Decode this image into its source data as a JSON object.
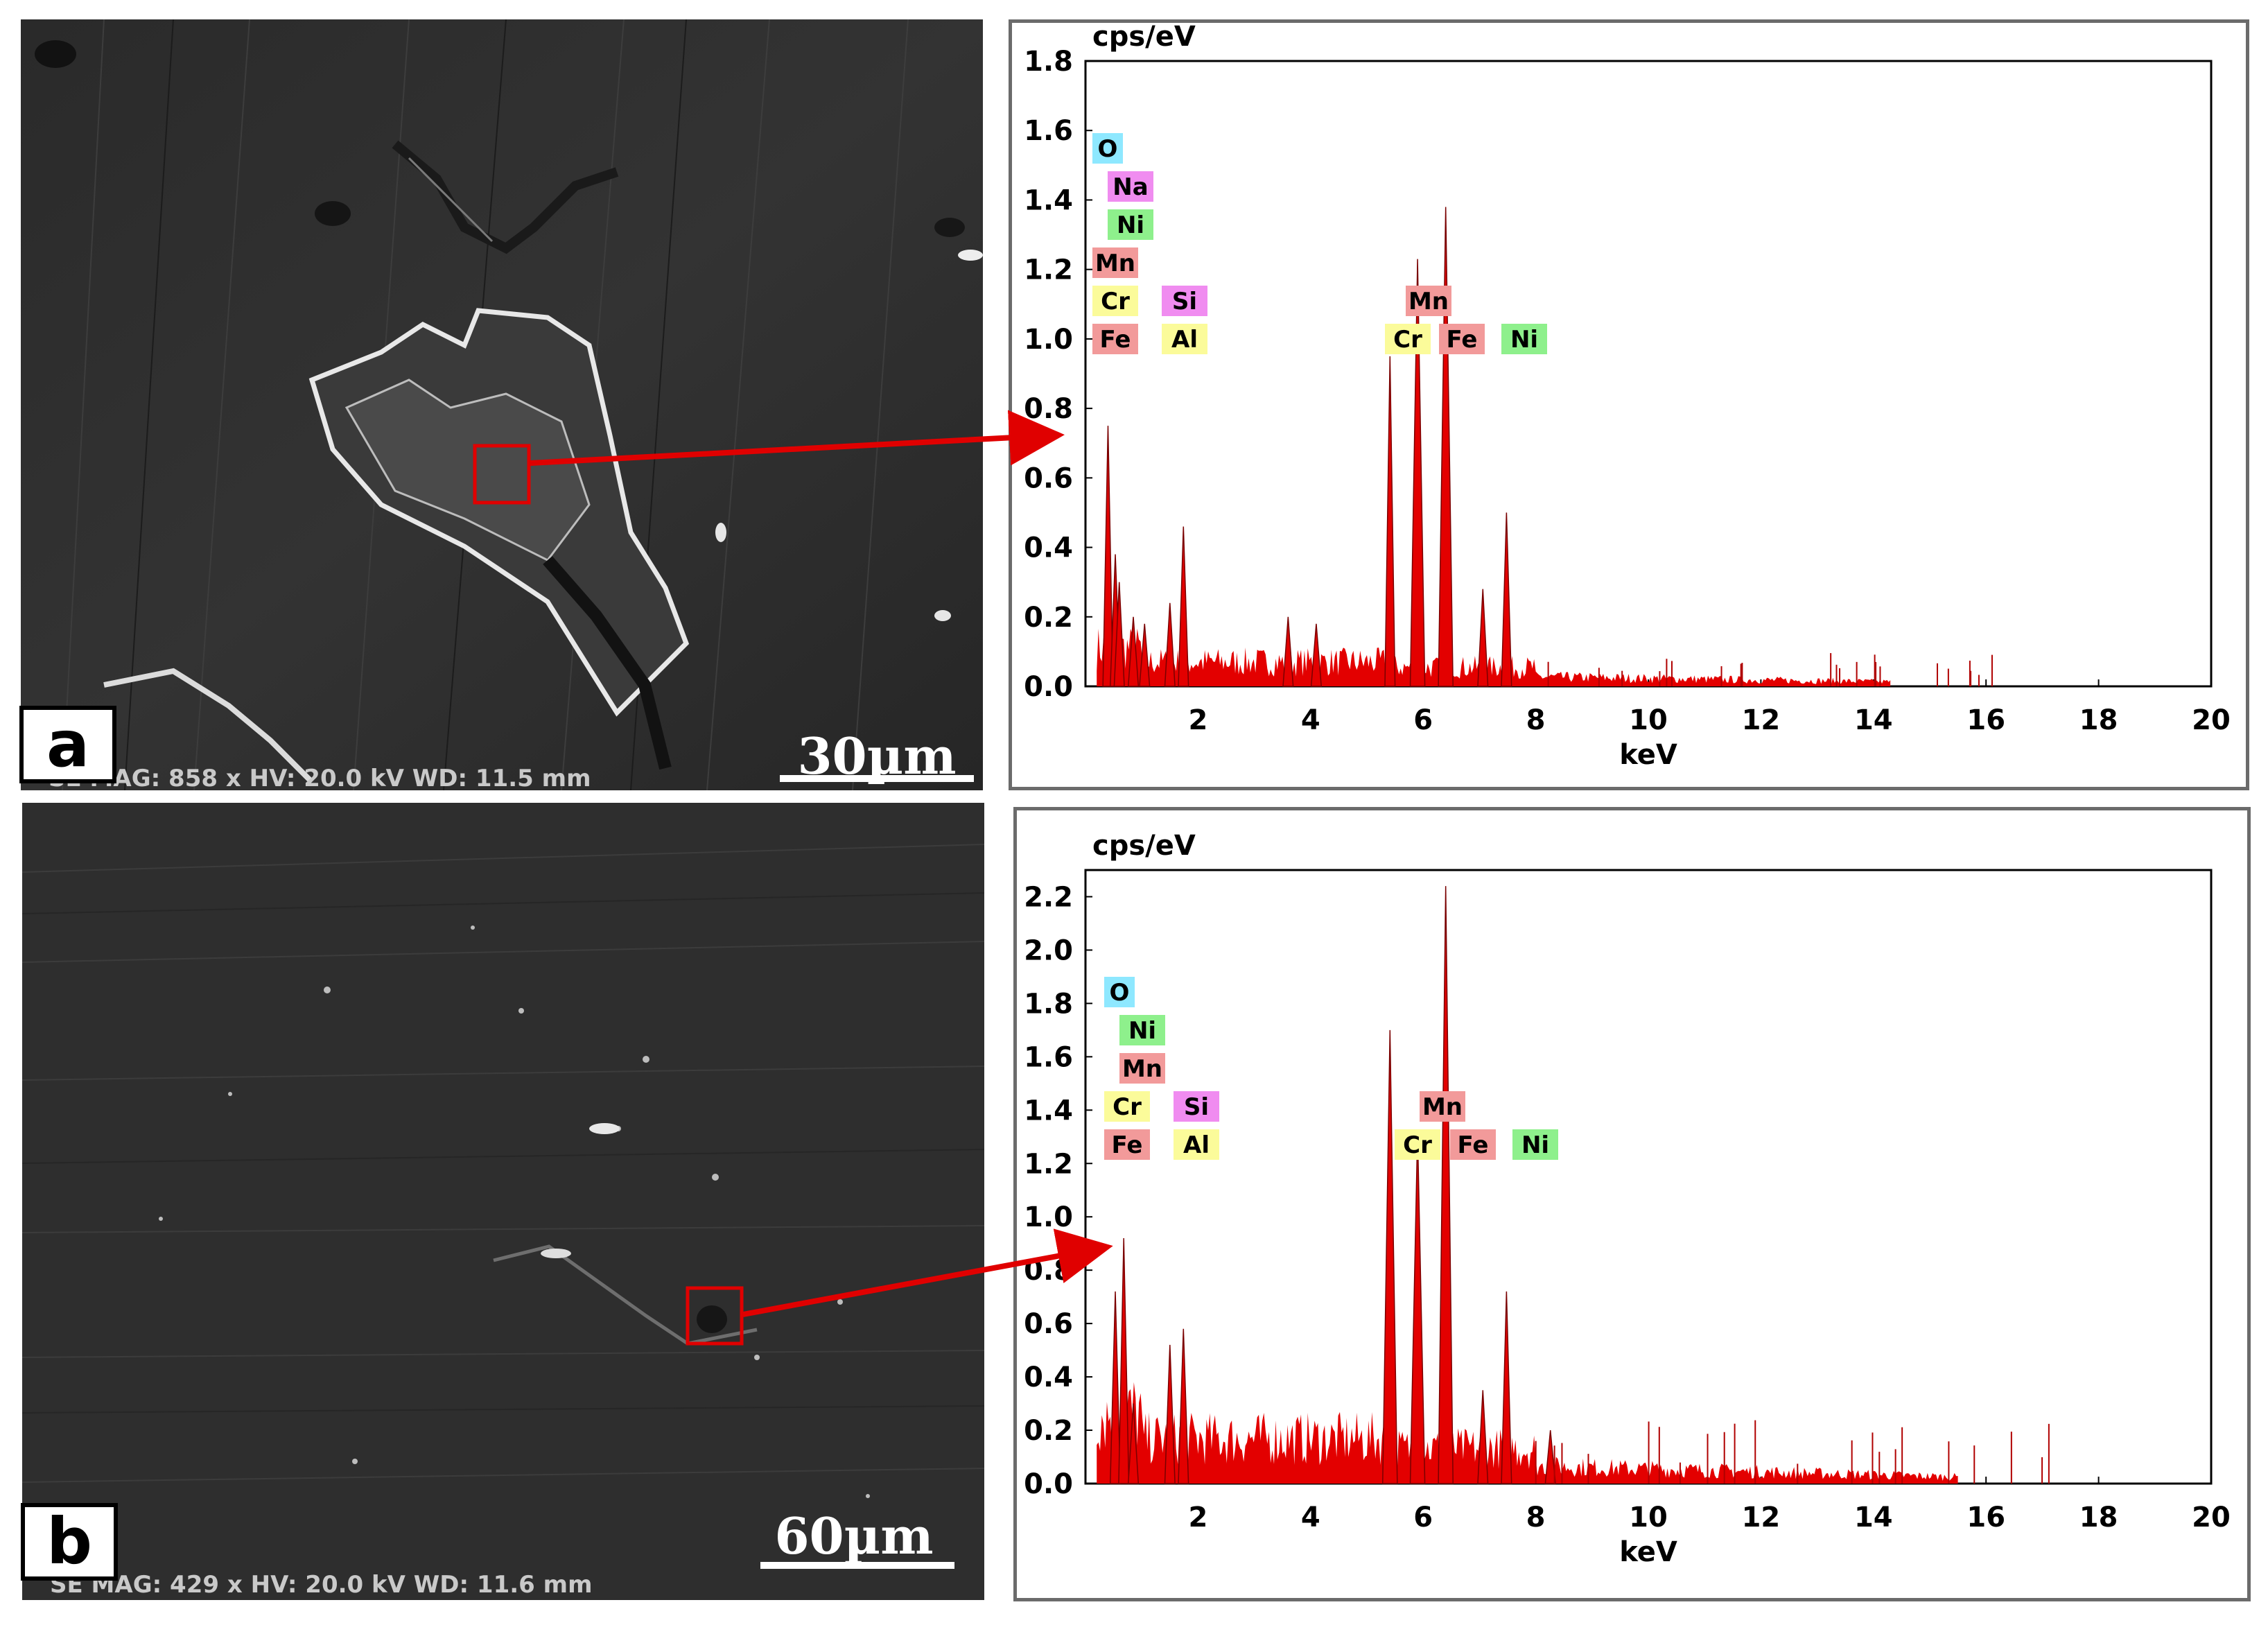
{
  "panels": [
    {
      "letter": "a",
      "scale_label": "30µm",
      "footer": "SE MAG: 858 x HV: 20.0 kV WD: 11.5 mm"
    },
    {
      "letter": "b",
      "scale_label": "60µm",
      "footer": "SE MAG: 429 x HV: 20.0 kV WD: 11.6 mm"
    }
  ],
  "colors": {
    "spectrum": "#e30000",
    "arrow": "#e00000",
    "O": "#8ee8ff",
    "Na": "#f08cf0",
    "Ni": "#8ef08c",
    "Mn": "#f29a9a",
    "Cr": "#fbfb9a",
    "Si": "#f08cf0",
    "Fe": "#f29a9a",
    "Al": "#fbfb9a"
  },
  "chart_data": [
    {
      "type": "area",
      "panel": "a",
      "ylabel": "cps/eV",
      "xlabel": "keV",
      "xlim": [
        0,
        20
      ],
      "ylim": [
        0,
        1.8
      ],
      "xticks": [
        "2",
        "4",
        "6",
        "8",
        "10",
        "12",
        "14",
        "16",
        "18",
        "20"
      ],
      "yticks": [
        "0.0",
        "0.2",
        "0.4",
        "0.6",
        "0.8",
        "1.0",
        "1.2",
        "1.4",
        "1.6",
        "1.8"
      ],
      "element_labels_left": [
        [
          "O"
        ],
        [
          "Na"
        ],
        [
          "Ni"
        ],
        [
          "Mn"
        ],
        [
          "Cr",
          "Si"
        ],
        [
          "Fe",
          "Al"
        ]
      ],
      "element_labels_peaks": [
        [
          "Mn"
        ],
        [
          "Cr",
          "Fe",
          "Ni"
        ]
      ],
      "peaks": [
        {
          "x": 0.4,
          "y": 0.75
        },
        {
          "x": 0.53,
          "y": 0.38
        },
        {
          "x": 0.6,
          "y": 0.3
        },
        {
          "x": 0.85,
          "y": 0.2
        },
        {
          "x": 1.05,
          "y": 0.18
        },
        {
          "x": 1.5,
          "y": 0.24
        },
        {
          "x": 1.74,
          "y": 0.46
        },
        {
          "x": 3.6,
          "y": 0.2
        },
        {
          "x": 4.1,
          "y": 0.18
        },
        {
          "x": 5.41,
          "y": 0.95
        },
        {
          "x": 5.9,
          "y": 1.23
        },
        {
          "x": 6.4,
          "y": 1.38
        },
        {
          "x": 7.06,
          "y": 0.28
        },
        {
          "x": 7.48,
          "y": 0.5
        }
      ],
      "background_level": 0.05,
      "background_end": 14.3
    },
    {
      "type": "area",
      "panel": "b",
      "ylabel": "cps/eV",
      "xlabel": "keV",
      "xlim": [
        0,
        20
      ],
      "ylim": [
        0,
        2.3
      ],
      "xticks": [
        "2",
        "4",
        "6",
        "8",
        "10",
        "12",
        "14",
        "16",
        "18",
        "20"
      ],
      "yticks": [
        "0.0",
        "0.2",
        "0.4",
        "0.6",
        "0.8",
        "1.0",
        "1.2",
        "1.4",
        "1.6",
        "1.8",
        "2.0",
        "2.2"
      ],
      "element_labels_left": [
        [
          "O"
        ],
        [
          "Ni"
        ],
        [
          "Mn"
        ],
        [
          "Cr",
          "Si"
        ],
        [
          "Fe",
          "Al"
        ]
      ],
      "element_labels_peaks": [
        [
          "Mn"
        ],
        [
          "Cr",
          "Fe",
          "Ni"
        ]
      ],
      "peaks": [
        {
          "x": 0.53,
          "y": 0.72
        },
        {
          "x": 0.68,
          "y": 0.92
        },
        {
          "x": 0.85,
          "y": 0.3
        },
        {
          "x": 1.5,
          "y": 0.52
        },
        {
          "x": 1.74,
          "y": 0.58
        },
        {
          "x": 5.41,
          "y": 1.7
        },
        {
          "x": 5.9,
          "y": 1.32
        },
        {
          "x": 6.4,
          "y": 2.24
        },
        {
          "x": 7.06,
          "y": 0.35
        },
        {
          "x": 7.48,
          "y": 0.72
        },
        {
          "x": 8.26,
          "y": 0.2
        }
      ],
      "background_level": 0.12,
      "background_end": 15.5
    }
  ]
}
